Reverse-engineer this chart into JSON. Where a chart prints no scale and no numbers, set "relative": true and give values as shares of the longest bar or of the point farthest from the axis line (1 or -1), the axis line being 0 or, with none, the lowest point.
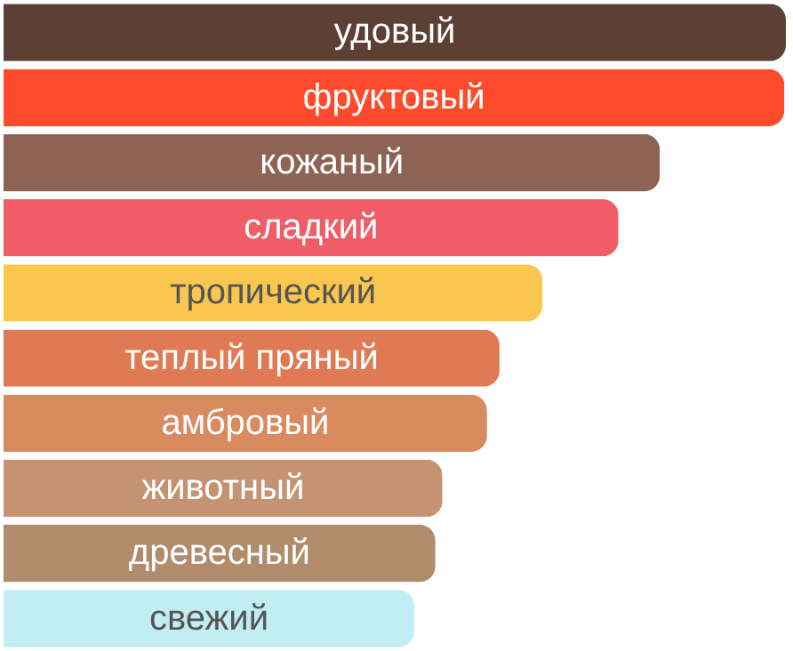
{
  "chart_data": {
    "type": "bar",
    "orientation": "horizontal",
    "relative": true,
    "categories": [
      "удовый",
      "фруктовый",
      "кожаный",
      "сладкий",
      "тропический",
      "теплый пряный",
      "амбровый",
      "животный",
      "древесный",
      "свежий"
    ],
    "values": [
      1,
      0.998,
      0.839,
      0.786,
      0.689,
      0.634,
      0.618,
      0.561,
      0.552,
      0.525
    ],
    "colors": [
      "#5c4033",
      "#ff4b2b",
      "#8d6354",
      "#f05d66",
      "#f9c74f",
      "#e07a55",
      "#d98a5f",
      "#c49371",
      "#b08b6c",
      "#c1eef2"
    ]
  }
}
